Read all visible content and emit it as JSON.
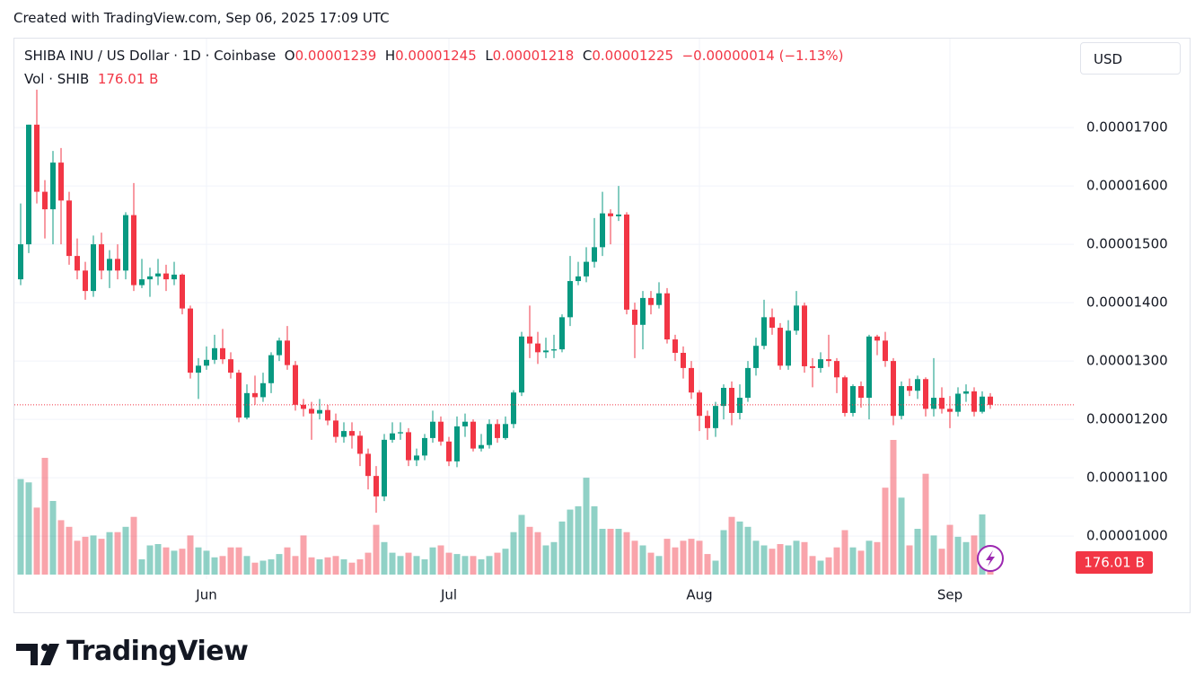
{
  "caption": "Created with TradingView.com, Sep 06, 2025 17:09 UTC",
  "brand": "TradingView",
  "currency": "USD",
  "chart_data": {
    "type": "candlestick",
    "title": "SHIBA INU / US Dollar · 1D · Coinbase",
    "ohlc_labels": [
      "O",
      "H",
      "L",
      "C"
    ],
    "change": "−0.00000014 (−1.13%)",
    "up_color": "#089981",
    "down_color": "#f23645",
    "grid": true,
    "categories": [
      null,
      null,
      null,
      null,
      null,
      null,
      null,
      null,
      null,
      null,
      null,
      null,
      null,
      null,
      null,
      null,
      null,
      null,
      null,
      null,
      null,
      null,
      null,
      "Jun",
      null,
      null,
      null,
      null,
      null,
      null,
      null,
      null,
      null,
      null,
      null,
      null,
      null,
      null,
      null,
      null,
      null,
      null,
      null,
      null,
      null,
      null,
      null,
      null,
      null,
      null,
      null,
      null,
      null,
      "Jul",
      null,
      null,
      null,
      null,
      null,
      null,
      null,
      null,
      null,
      null,
      null,
      null,
      null,
      null,
      null,
      null,
      null,
      null,
      null,
      null,
      null,
      null,
      null,
      null,
      null,
      null,
      null,
      null,
      null,
      null,
      "Aug",
      null,
      null,
      null,
      null,
      null,
      null,
      null,
      null,
      null,
      null,
      null,
      null,
      null,
      null,
      null,
      null,
      null,
      null,
      null,
      null,
      null,
      null,
      null,
      null,
      null,
      null,
      null,
      null,
      null,
      null,
      "Sep",
      null,
      null,
      null,
      null,
      null
    ],
    "open": [
      1.44e-05,
      1.5e-05,
      1.705e-05,
      1.59e-05,
      1.56e-05,
      1.64e-05,
      1.575e-05,
      1.48e-05,
      1.455e-05,
      1.42e-05,
      1.5e-05,
      1.455e-05,
      1.475e-05,
      1.455e-05,
      1.55e-05,
      1.43e-05,
      1.44e-05,
      1.445e-05,
      1.45e-05,
      1.44e-05,
      1.448e-05,
      1.39e-05,
      1.28e-05,
      1.292e-05,
      1.302e-05,
      1.322e-05,
      1.303e-05,
      1.28e-05,
      1.203e-05,
      1.245e-05,
      1.238e-05,
      1.262e-05,
      1.31e-05,
      1.335e-05,
      1.293e-05,
      1.225e-05,
      1.218e-05,
      1.21e-05,
      1.216e-05,
      1.198e-05,
      1.17e-05,
      1.18e-05,
      1.172e-05,
      1.141e-05,
      1.103e-05,
      1.068e-05,
      1.165e-05,
      1.176e-05,
      1.178e-05,
      1.13e-05,
      1.138e-05,
      1.168e-05,
      1.196e-05,
      1.162e-05,
      1.128e-05,
      1.188e-05,
      1.196e-05,
      1.15e-05,
      1.156e-05,
      1.192e-05,
      1.168e-05,
      1.192e-05,
      1.246e-05,
      1.342e-05,
      1.33e-05,
      1.315e-05,
      1.318e-05,
      1.32e-05,
      1.375e-05,
      1.437e-05,
      1.445e-05,
      1.47e-05,
      1.495e-05,
      1.553e-05,
      1.548e-05,
      1.551e-05,
      1.388e-05,
      1.362e-05,
      1.408e-05,
      1.396e-05,
      1.416e-05,
      1.337e-05,
      1.314e-05,
      1.288e-05,
      1.246e-05,
      1.206e-05,
      1.185e-05,
      1.223e-05,
      1.254e-05,
      1.211e-05,
      1.237e-05,
      1.288e-05,
      1.326e-05,
      1.375e-05,
      1.357e-05,
      1.292e-05,
      1.352e-05,
      1.395e-05,
      1.291e-05,
      1.288e-05,
      1.303e-05,
      1.3e-05,
      1.272e-05,
      1.211e-05,
      1.257e-05,
      1.237e-05,
      1.342e-05,
      1.335e-05,
      1.3e-05,
      1.206e-05,
      1.257e-05,
      1.249e-05,
      1.269e-05,
      1.218e-05,
      1.237e-05,
      1.218e-05,
      1.213e-05,
      1.244e-05,
      1.248e-05,
      1.213e-05,
      1.239e-05
    ],
    "high": [
      1.57e-05,
      1.705e-05,
      1.765e-05,
      1.61e-05,
      1.66e-05,
      1.665e-05,
      1.59e-05,
      1.51e-05,
      1.47e-05,
      1.515e-05,
      1.52e-05,
      1.49e-05,
      1.5e-05,
      1.555e-05,
      1.605e-05,
      1.475e-05,
      1.46e-05,
      1.475e-05,
      1.465e-05,
      1.47e-05,
      1.45e-05,
      1.395e-05,
      1.305e-05,
      1.325e-05,
      1.345e-05,
      1.355e-05,
      1.315e-05,
      1.285e-05,
      1.26e-05,
      1.275e-05,
      1.28e-05,
      1.315e-05,
      1.34e-05,
      1.36e-05,
      1.3e-05,
      1.235e-05,
      1.23e-05,
      1.235e-05,
      1.225e-05,
      1.21e-05,
      1.195e-05,
      1.195e-05,
      1.18e-05,
      1.15e-05,
      1.12e-05,
      1.175e-05,
      1.195e-05,
      1.195e-05,
      1.185e-05,
      1.15e-05,
      1.175e-05,
      1.215e-05,
      1.205e-05,
      1.17e-05,
      1.205e-05,
      1.21e-05,
      1.2e-05,
      1.175e-05,
      1.2e-05,
      1.2e-05,
      1.205e-05,
      1.25e-05,
      1.35e-05,
      1.395e-05,
      1.35e-05,
      1.34e-05,
      1.345e-05,
      1.38e-05,
      1.48e-05,
      1.47e-05,
      1.495e-05,
      1.545e-05,
      1.59e-05,
      1.56e-05,
      1.6e-05,
      1.555e-05,
      1.4e-05,
      1.42e-05,
      1.42e-05,
      1.435e-05,
      1.425e-05,
      1.345e-05,
      1.325e-05,
      1.3e-05,
      1.25e-05,
      1.215e-05,
      1.23e-05,
      1.26e-05,
      1.265e-05,
      1.26e-05,
      1.3e-05,
      1.34e-05,
      1.405e-05,
      1.39e-05,
      1.365e-05,
      1.37e-05,
      1.42e-05,
      1.4e-05,
      1.305e-05,
      1.315e-05,
      1.345e-05,
      1.305e-05,
      1.275e-05,
      1.26e-05,
      1.265e-05,
      1.345e-05,
      1.345e-05,
      1.35e-05,
      1.305e-05,
      1.265e-05,
      1.27e-05,
      1.275e-05,
      1.272e-05,
      1.305e-05,
      1.255e-05,
      1.24e-05,
      1.255e-05,
      1.26e-05,
      1.255e-05,
      1.248e-05,
      1.245e-05
    ],
    "low": [
      1.43e-05,
      1.485e-05,
      1.57e-05,
      1.51e-05,
      1.5e-05,
      1.5e-05,
      1.465e-05,
      1.44e-05,
      1.405e-05,
      1.41e-05,
      1.44e-05,
      1.425e-05,
      1.44e-05,
      1.44e-05,
      1.42e-05,
      1.425e-05,
      1.41e-05,
      1.43e-05,
      1.42e-05,
      1.43e-05,
      1.38e-05,
      1.27e-05,
      1.235e-05,
      1.285e-05,
      1.295e-05,
      1.295e-05,
      1.27e-05,
      1.195e-05,
      1.2e-05,
      1.225e-05,
      1.23e-05,
      1.245e-05,
      1.3e-05,
      1.285e-05,
      1.215e-05,
      1.205e-05,
      1.165e-05,
      1.2e-05,
      1.19e-05,
      1.16e-05,
      1.16e-05,
      1.15e-05,
      1.12e-05,
      1.08e-05,
      1.04e-05,
      1.06e-05,
      1.16e-05,
      1.165e-05,
      1.12e-05,
      1.12e-05,
      1.13e-05,
      1.16e-05,
      1.155e-05,
      1.12e-05,
      1.118e-05,
      1.17e-05,
      1.145e-05,
      1.145e-05,
      1.15e-05,
      1.16e-05,
      1.165e-05,
      1.185e-05,
      1.24e-05,
      1.305e-05,
      1.295e-05,
      1.305e-05,
      1.305e-05,
      1.315e-05,
      1.36e-05,
      1.43e-05,
      1.435e-05,
      1.46e-05,
      1.48e-05,
      1.5e-05,
      1.54e-05,
      1.38e-05,
      1.305e-05,
      1.32e-05,
      1.38e-05,
      1.39e-05,
      1.33e-05,
      1.3e-05,
      1.27e-05,
      1.235e-05,
      1.18e-05,
      1.165e-05,
      1.17e-05,
      1.2e-05,
      1.19e-05,
      1.2e-05,
      1.23e-05,
      1.275e-05,
      1.32e-05,
      1.345e-05,
      1.285e-05,
      1.285e-05,
      1.345e-05,
      1.28e-05,
      1.255e-05,
      1.28e-05,
      1.29e-05,
      1.245e-05,
      1.205e-05,
      1.205e-05,
      1.22e-05,
      1.2e-05,
      1.31e-05,
      1.29e-05,
      1.19e-05,
      1.2e-05,
      1.24e-05,
      1.235e-05,
      1.205e-05,
      1.205e-05,
      1.21e-05,
      1.185e-05,
      1.205e-05,
      1.23e-05,
      1.205e-05,
      1.21e-05,
      1.218e-05
    ],
    "close": [
      1.5e-05,
      1.705e-05,
      1.59e-05,
      1.56e-05,
      1.64e-05,
      1.575e-05,
      1.48e-05,
      1.455e-05,
      1.42e-05,
      1.5e-05,
      1.455e-05,
      1.475e-05,
      1.455e-05,
      1.55e-05,
      1.43e-05,
      1.44e-05,
      1.445e-05,
      1.45e-05,
      1.44e-05,
      1.448e-05,
      1.39e-05,
      1.28e-05,
      1.292e-05,
      1.302e-05,
      1.322e-05,
      1.303e-05,
      1.28e-05,
      1.203e-05,
      1.245e-05,
      1.238e-05,
      1.262e-05,
      1.31e-05,
      1.335e-05,
      1.293e-05,
      1.225e-05,
      1.218e-05,
      1.21e-05,
      1.216e-05,
      1.198e-05,
      1.17e-05,
      1.18e-05,
      1.172e-05,
      1.141e-05,
      1.103e-05,
      1.068e-05,
      1.165e-05,
      1.176e-05,
      1.178e-05,
      1.13e-05,
      1.138e-05,
      1.168e-05,
      1.196e-05,
      1.162e-05,
      1.128e-05,
      1.188e-05,
      1.196e-05,
      1.15e-05,
      1.156e-05,
      1.192e-05,
      1.168e-05,
      1.192e-05,
      1.246e-05,
      1.342e-05,
      1.33e-05,
      1.315e-05,
      1.318e-05,
      1.32e-05,
      1.375e-05,
      1.437e-05,
      1.445e-05,
      1.47e-05,
      1.495e-05,
      1.553e-05,
      1.548e-05,
      1.551e-05,
      1.388e-05,
      1.362e-05,
      1.408e-05,
      1.396e-05,
      1.416e-05,
      1.337e-05,
      1.314e-05,
      1.288e-05,
      1.246e-05,
      1.206e-05,
      1.185e-05,
      1.223e-05,
      1.254e-05,
      1.211e-05,
      1.237e-05,
      1.288e-05,
      1.326e-05,
      1.375e-05,
      1.357e-05,
      1.292e-05,
      1.352e-05,
      1.395e-05,
      1.291e-05,
      1.288e-05,
      1.303e-05,
      1.3e-05,
      1.272e-05,
      1.211e-05,
      1.257e-05,
      1.237e-05,
      1.342e-05,
      1.335e-05,
      1.3e-05,
      1.206e-05,
      1.257e-05,
      1.249e-05,
      1.269e-05,
      1.218e-05,
      1.237e-05,
      1.218e-05,
      1.213e-05,
      1.244e-05,
      1.248e-05,
      1.213e-05,
      1.239e-05,
      1.225e-05
    ],
    "volume": {
      "name": "Vol · SHIB",
      "last_value_label": "176.01 B",
      "values": [
        1440,
        1390,
        1010,
        1760,
        1110,
        820,
        720,
        510,
        570,
        590,
        540,
        640,
        640,
        720,
        870,
        230,
        440,
        460,
        410,
        360,
        390,
        590,
        410,
        360,
        260,
        280,
        410,
        410,
        280,
        180,
        210,
        230,
        310,
        410,
        280,
        590,
        260,
        230,
        260,
        280,
        230,
        180,
        230,
        330,
        750,
        490,
        330,
        280,
        330,
        280,
        230,
        410,
        440,
        330,
        310,
        280,
        280,
        230,
        280,
        330,
        390,
        640,
        900,
        720,
        640,
        440,
        490,
        800,
        980,
        1030,
        1460,
        1030,
        690,
        690,
        690,
        640,
        510,
        440,
        330,
        280,
        540,
        410,
        510,
        540,
        510,
        310,
        210,
        670,
        870,
        800,
        720,
        510,
        440,
        390,
        460,
        440,
        510,
        490,
        280,
        210,
        260,
        410,
        670,
        410,
        360,
        510,
        490,
        1310,
        2030,
        1160,
        440,
        690,
        1520,
        590,
        390,
        750,
        570,
        490,
        590,
        907,
        176.01
      ]
    },
    "ylim": [
      9.34e-06,
      1.854e-05
    ],
    "yticks": [
      {
        "value": 1e-05,
        "label": "0.00001000"
      },
      {
        "value": 1.1e-05,
        "label": "0.00001100"
      },
      {
        "value": 1.2e-05,
        "label": "0.00001200"
      },
      {
        "value": 1.3e-05,
        "label": "0.00001300"
      },
      {
        "value": 1.4e-05,
        "label": "0.00001400"
      },
      {
        "value": 1.5e-05,
        "label": "0.00001500"
      },
      {
        "value": 1.6e-05,
        "label": "0.00001600"
      },
      {
        "value": 1.7e-05,
        "label": "0.00001700"
      }
    ]
  }
}
